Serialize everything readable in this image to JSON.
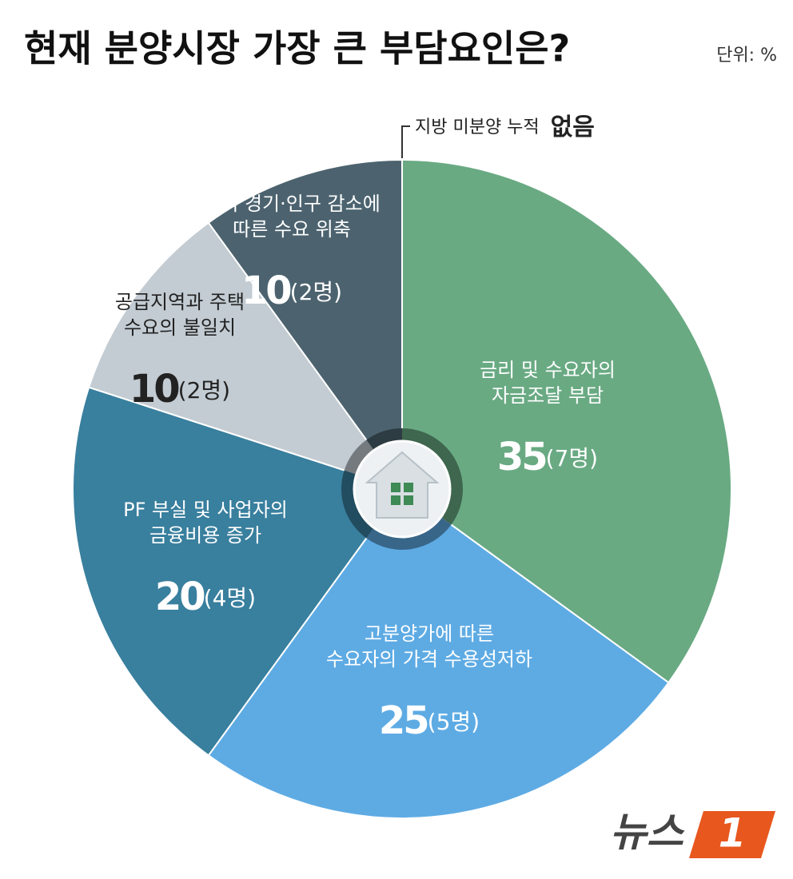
{
  "chart_data": {
    "type": "pie",
    "title": "현재 분양시장 가장 큰 부담요인은?",
    "unit_note": "단위: %",
    "categories": [
      "금리 및 수요자의\n자금조달 부담",
      "고분양가에 따른\n수요자의 가격 수용성저하",
      "PF 부실 및 사업자의\n금융비용 증가",
      "공급지역과 주택\n수요의 불일치",
      "지역 경기·인구 감소에\n따른 수요 위축",
      "지방 미분양 누적"
    ],
    "values": [
      35,
      25,
      20,
      10,
      10,
      0
    ],
    "value_labels": [
      "35",
      "25",
      "20",
      "10",
      "10",
      "없음"
    ],
    "counts": [
      "(7명)",
      "(5명)",
      "(4명)",
      "(2명)",
      "(2명)",
      null
    ],
    "colors": [
      "#69aa83",
      "#5eabe4",
      "#397f9e",
      "#c3ccd3",
      "#4c636f",
      "#333333"
    ],
    "logo_text": "뉴스",
    "logo_mark": "1"
  }
}
